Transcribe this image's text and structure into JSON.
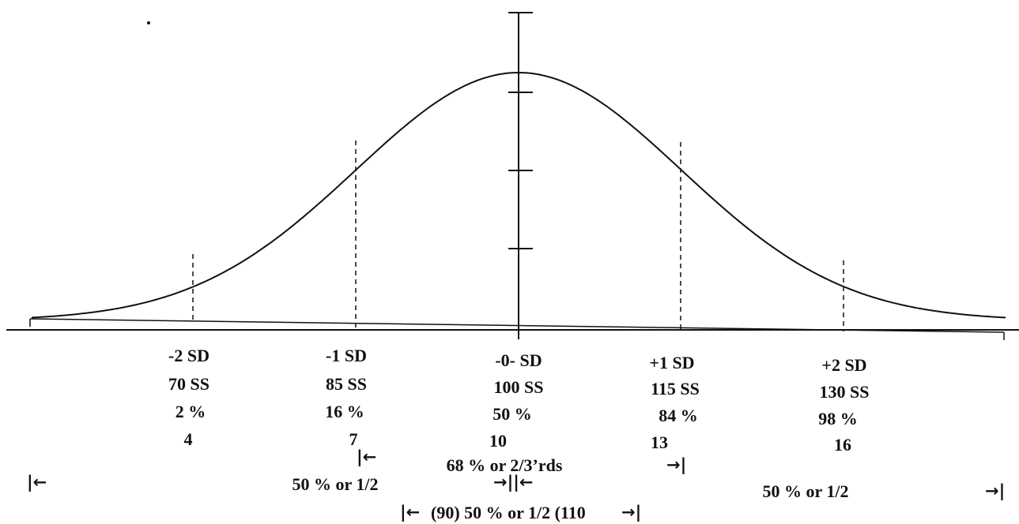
{
  "colors": {
    "ink": "#111111",
    "background": "#ffffff"
  },
  "columns": [
    {
      "sd": "-2 SD",
      "ss": "70 SS",
      "pct": "2 %",
      "scaled": "4"
    },
    {
      "sd": "-1 SD",
      "ss": "85 SS",
      "pct": "16 %",
      "scaled": "7"
    },
    {
      "sd": "-0- SD",
      "ss": "100 SS",
      "pct": "50 %",
      "scaled": "10"
    },
    {
      "sd": "+1 SD",
      "ss": "115 SS",
      "pct": "84 %",
      "scaled": "13"
    },
    {
      "sd": "+2 SD",
      "ss": "130 SS",
      "pct": "98 %",
      "scaled": "16"
    }
  ],
  "ranges": {
    "middle": "68 % or 2/3’rds",
    "left_half": "50 % or 1/2",
    "right_half": "50 % or 1/2",
    "center_band": "(90) 50 % or 1/2 (110"
  },
  "glyphs": {
    "left_stop": "|←",
    "right_stop": "→|",
    "double_stop": "→||←",
    "left_arrow": "|←",
    "right_arrow": "→|"
  }
}
